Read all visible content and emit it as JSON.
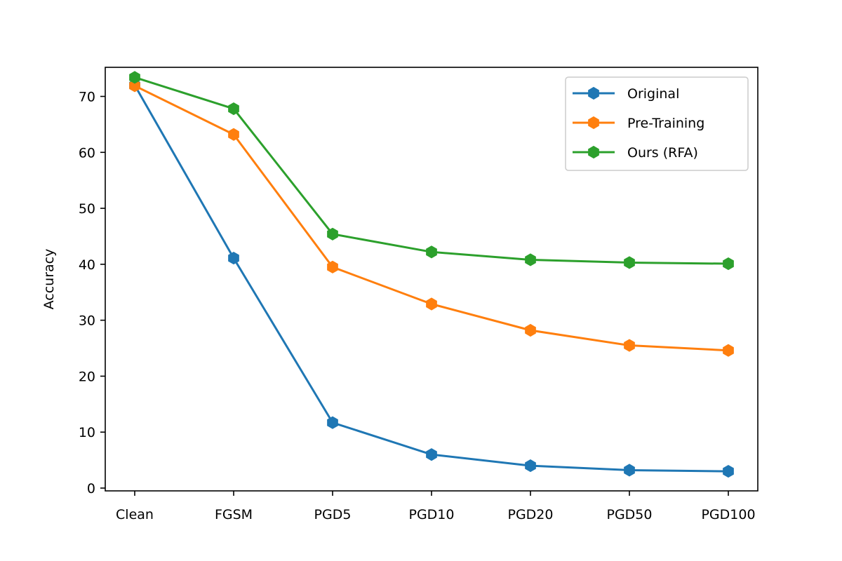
{
  "chart_data": {
    "type": "line",
    "title": "",
    "xlabel": "",
    "ylabel": "Accuracy",
    "categories": [
      "Clean",
      "FGSM",
      "PGD5",
      "PGD10",
      "PGD20",
      "PGD50",
      "PGD100"
    ],
    "yticks": [
      0,
      10,
      20,
      30,
      40,
      50,
      60,
      70
    ],
    "ylim": [
      -0.5,
      75.2
    ],
    "grid": false,
    "legend_position": "top-right",
    "marker": "hexagon",
    "series": [
      {
        "name": "Original",
        "color": "#1f77b4",
        "values": [
          72.0,
          41.1,
          11.7,
          6.0,
          4.0,
          3.2,
          3.0
        ]
      },
      {
        "name": "Pre-Training",
        "color": "#ff7f0e",
        "values": [
          71.9,
          63.2,
          39.5,
          32.9,
          28.2,
          25.5,
          24.6
        ]
      },
      {
        "name": "Ours (RFA)",
        "color": "#2ca02c",
        "values": [
          73.4,
          67.8,
          45.4,
          42.2,
          40.8,
          40.3,
          40.1
        ]
      }
    ]
  }
}
